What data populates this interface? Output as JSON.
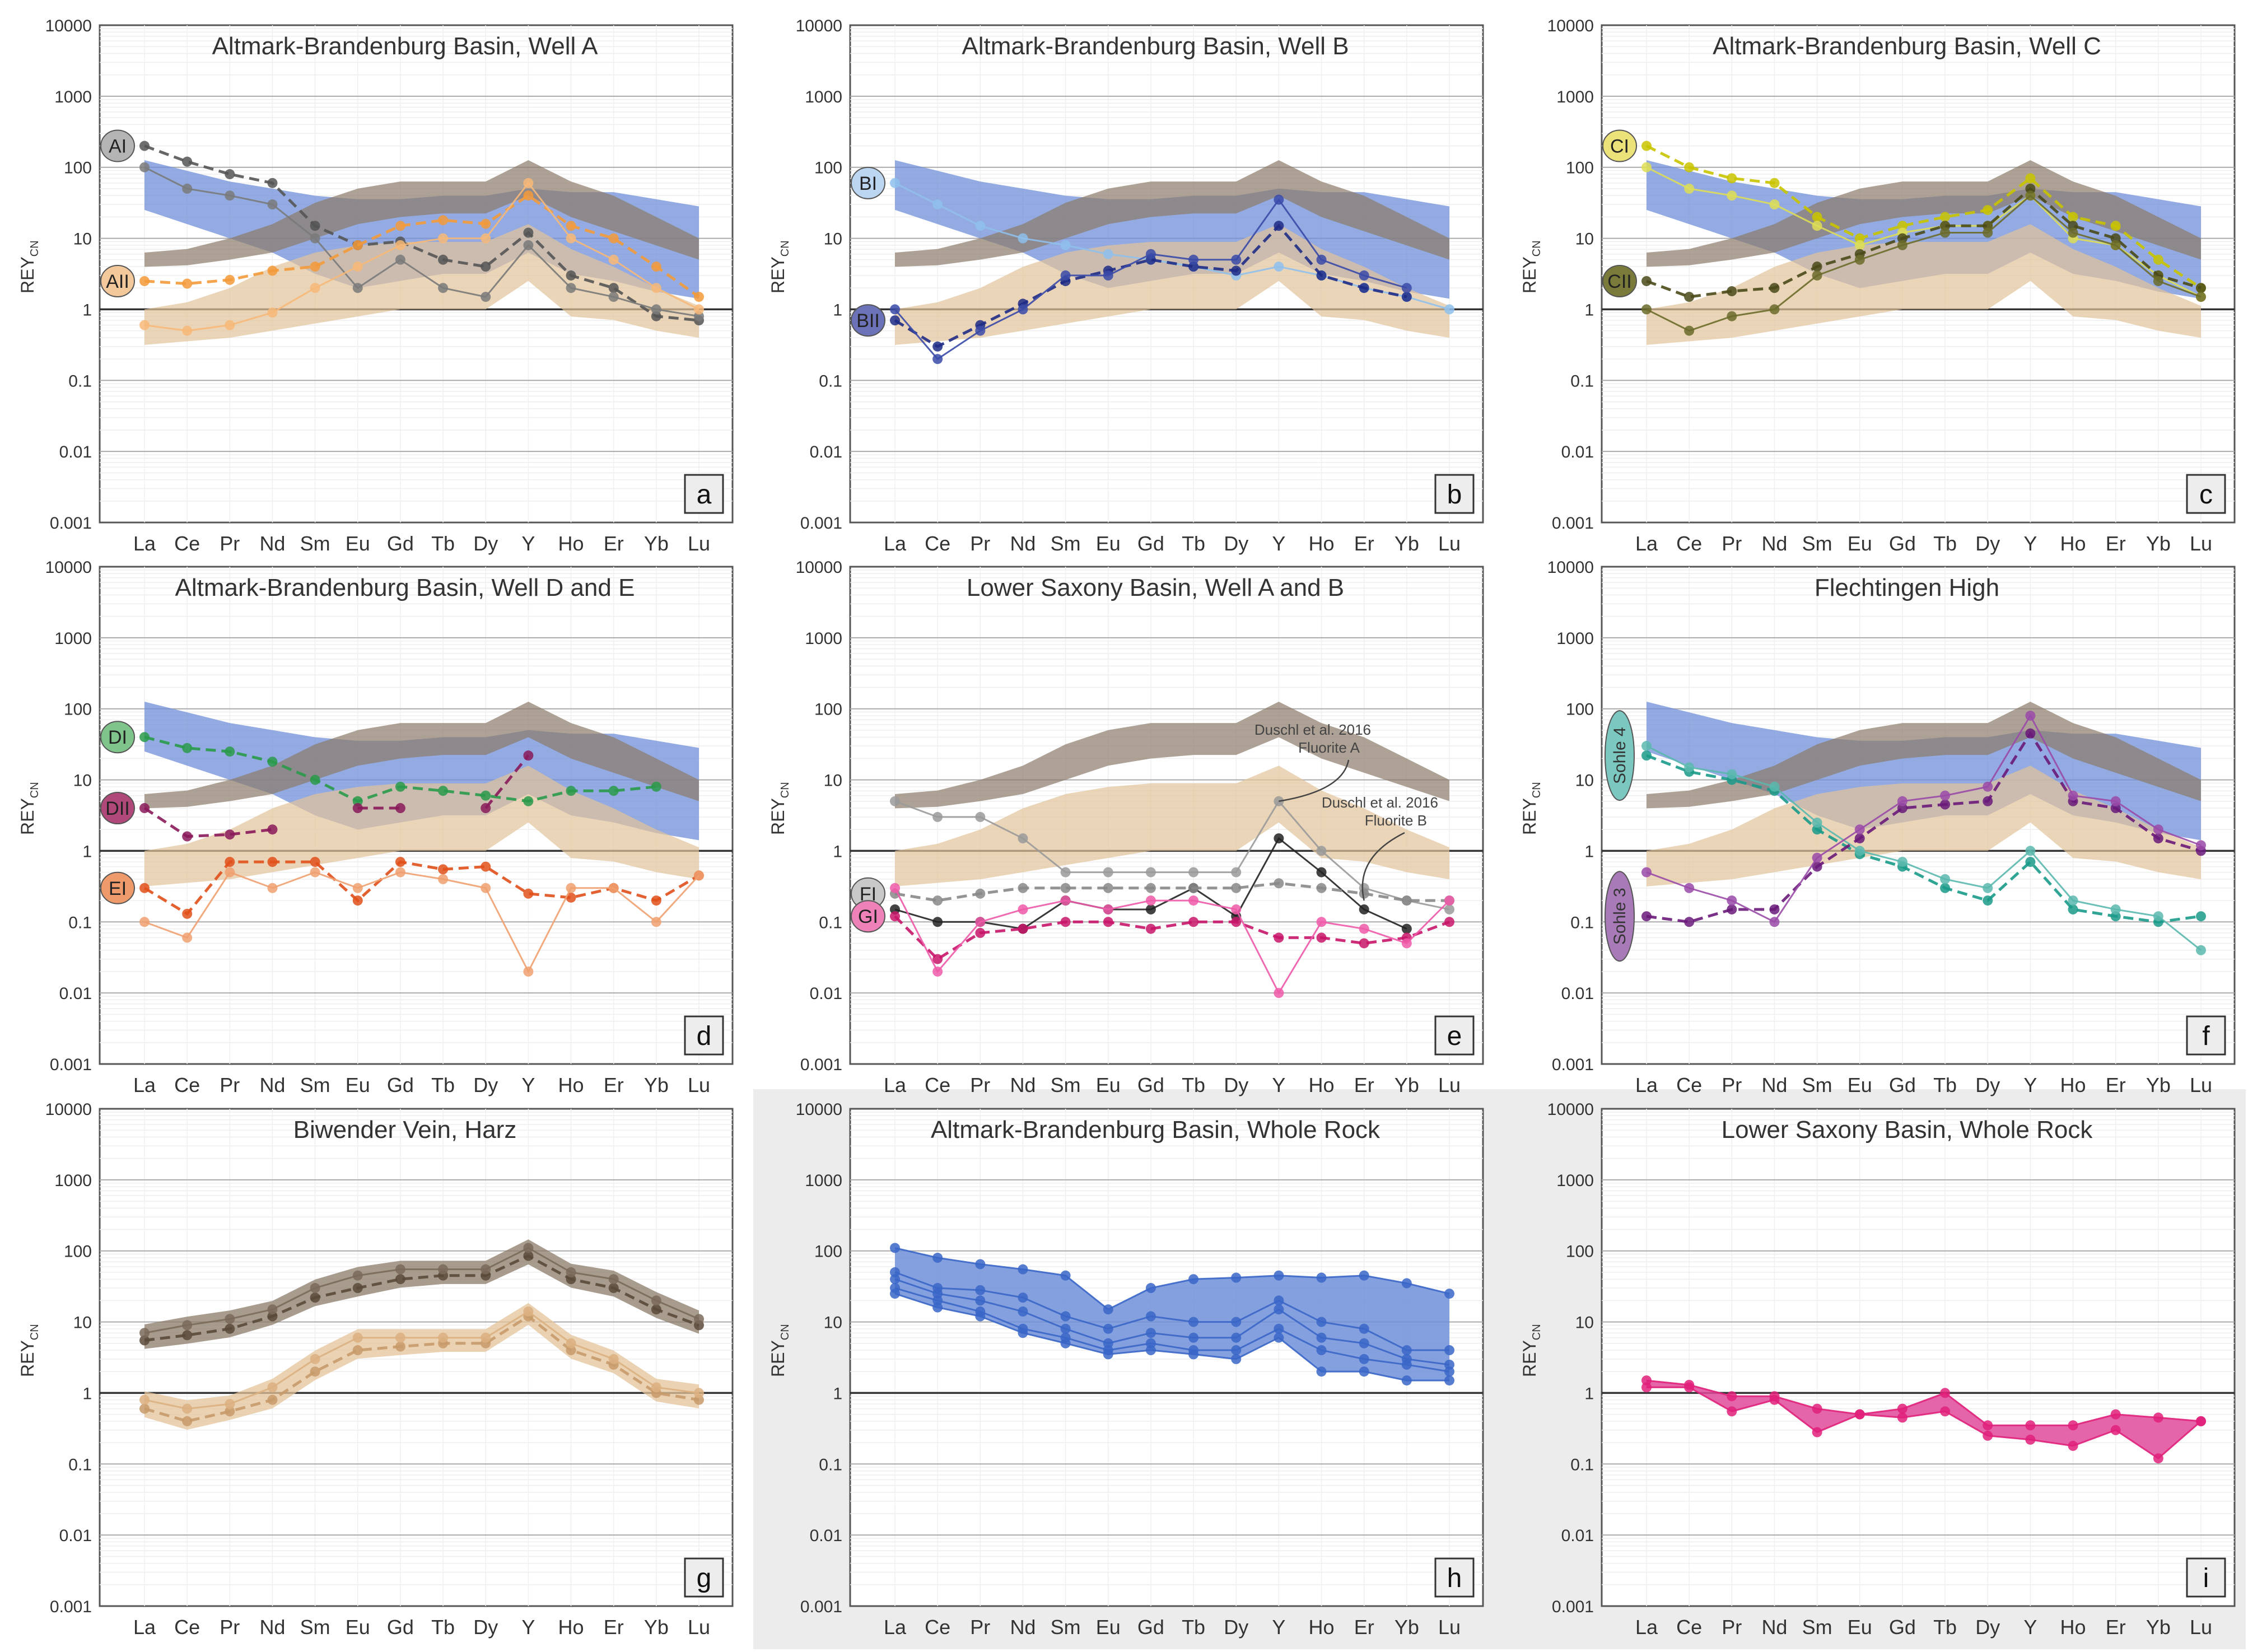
{
  "figure": {
    "elements": [
      "La",
      "Ce",
      "Pr",
      "Nd",
      "Sm",
      "Eu",
      "Gd",
      "Tb",
      "Dy",
      "Y",
      "Ho",
      "Er",
      "Yb",
      "Lu"
    ],
    "ylabel": "REY",
    "ylabel_sub": "CN",
    "yticks": [
      "0.001",
      "0.01",
      "0.1",
      "1",
      "10",
      "100",
      "1000",
      "10000"
    ],
    "colors": {
      "brown_band": "#8b7b6a",
      "tan_band": "#e3c39a",
      "blue_band": "#6f8fd8",
      "pink_band": "#e04a9a",
      "gray_bg": "#ececec"
    }
  },
  "chart_data": [
    {
      "panel": "a",
      "type": "line",
      "title": "Altmark-Brandenburg Basin, Well A",
      "xlabel": "",
      "ylabel": "REYCN",
      "yscale": "log",
      "ylim": [
        0.001,
        10000
      ],
      "categories": [
        "La",
        "Ce",
        "Pr",
        "Nd",
        "Sm",
        "Eu",
        "Gd",
        "Tb",
        "Dy",
        "Y",
        "Ho",
        "Er",
        "Yb",
        "Lu"
      ],
      "groups": [
        {
          "label": "AI",
          "color": "#b4b4b4"
        },
        {
          "label": "AII",
          "color": "#f3c99b"
        }
      ],
      "series": [
        {
          "name": "AI mean",
          "color": "#555555",
          "dashed": true,
          "values": [
            200,
            120,
            80,
            60,
            15,
            8,
            9,
            5,
            4,
            12,
            3,
            2,
            0.8,
            0.7
          ]
        },
        {
          "name": "AI sample",
          "color": "#7a7a7a",
          "dashed": false,
          "values": [
            100,
            50,
            40,
            30,
            10,
            2,
            5,
            2,
            1.5,
            8,
            2,
            1.5,
            1,
            0.8
          ]
        },
        {
          "name": "AII mean",
          "color": "#f39a3a",
          "dashed": true,
          "values": [
            2.5,
            2.3,
            2.6,
            3.5,
            4,
            8,
            15,
            18,
            16,
            40,
            15,
            10,
            4,
            1.5
          ]
        },
        {
          "name": "AII sample",
          "color": "#f7b878",
          "dashed": false,
          "values": [
            0.6,
            0.5,
            0.6,
            0.9,
            2,
            4,
            8,
            10,
            10,
            60,
            10,
            5,
            2,
            1
          ]
        }
      ]
    },
    {
      "panel": "b",
      "type": "line",
      "title": "Altmark-Brandenburg Basin, Well B",
      "xlabel": "",
      "ylabel": "REYCN",
      "yscale": "log",
      "ylim": [
        0.001,
        10000
      ],
      "categories": [
        "La",
        "Ce",
        "Pr",
        "Nd",
        "Sm",
        "Eu",
        "Gd",
        "Tb",
        "Dy",
        "Y",
        "Ho",
        "Er",
        "Yb",
        "Lu"
      ],
      "groups": [
        {
          "label": "BI",
          "color": "#bcd6f2"
        },
        {
          "label": "BII",
          "color": "#6b72b8"
        }
      ],
      "series": [
        {
          "name": "BI sample",
          "color": "#8fc0ec",
          "dashed": false,
          "values": [
            60,
            30,
            15,
            10,
            8,
            6,
            5,
            4,
            3,
            4,
            3,
            2,
            1.5,
            1
          ]
        },
        {
          "name": "BII mean",
          "color": "#1f2c86",
          "dashed": true,
          "values": [
            0.7,
            0.3,
            0.6,
            1.2,
            2.5,
            3.5,
            5,
            4,
            3.5,
            15,
            3,
            2,
            1.5,
            null
          ]
        },
        {
          "name": "BII sample",
          "color": "#3a4aa8",
          "dashed": false,
          "values": [
            1,
            0.2,
            0.5,
            1,
            3,
            3,
            6,
            5,
            5,
            35,
            5,
            3,
            2,
            null
          ]
        }
      ]
    },
    {
      "panel": "c",
      "type": "line",
      "title": "Altmark-Brandenburg Basin, Well C",
      "xlabel": "",
      "ylabel": "REYCN",
      "yscale": "log",
      "ylim": [
        0.001,
        10000
      ],
      "categories": [
        "La",
        "Ce",
        "Pr",
        "Nd",
        "Sm",
        "Eu",
        "Gd",
        "Tb",
        "Dy",
        "Y",
        "Ho",
        "Er",
        "Yb",
        "Lu"
      ],
      "groups": [
        {
          "label": "CI",
          "color": "#ece27a"
        },
        {
          "label": "CII",
          "color": "#7a7a3a"
        }
      ],
      "series": [
        {
          "name": "CI mean",
          "color": "#c9c400",
          "dashed": true,
          "values": [
            200,
            100,
            70,
            60,
            20,
            10,
            15,
            20,
            25,
            70,
            20,
            15,
            5,
            2
          ]
        },
        {
          "name": "CI sample",
          "color": "#dede55",
          "dashed": false,
          "values": [
            100,
            50,
            40,
            30,
            15,
            8,
            12,
            15,
            15,
            40,
            10,
            8,
            3,
            1.5
          ]
        },
        {
          "name": "CII mean",
          "color": "#4a4a1a",
          "dashed": true,
          "values": [
            2.5,
            1.5,
            1.8,
            2,
            4,
            6,
            10,
            15,
            15,
            50,
            15,
            10,
            3,
            2
          ]
        },
        {
          "name": "CII sample",
          "color": "#6b6b2a",
          "dashed": false,
          "values": [
            1,
            0.5,
            0.8,
            1,
            3,
            5,
            8,
            12,
            12,
            40,
            12,
            8,
            2.5,
            1.5
          ]
        }
      ]
    },
    {
      "panel": "d",
      "type": "line",
      "title": "Altmark-Brandenburg Basin, Well D and E",
      "xlabel": "",
      "ylabel": "REYCN",
      "yscale": "log",
      "ylim": [
        0.001,
        10000
      ],
      "categories": [
        "La",
        "Ce",
        "Pr",
        "Nd",
        "Sm",
        "Eu",
        "Gd",
        "Tb",
        "Dy",
        "Y",
        "Ho",
        "Er",
        "Yb",
        "Lu"
      ],
      "groups": [
        {
          "label": "DI",
          "color": "#7fc48a"
        },
        {
          "label": "DII",
          "color": "#b0487a"
        },
        {
          "label": "EI",
          "color": "#ee9a6a"
        }
      ],
      "series": [
        {
          "name": "DI",
          "color": "#2a9a4a",
          "dashed": true,
          "values": [
            40,
            28,
            25,
            18,
            10,
            5,
            8,
            7,
            6,
            5,
            7,
            7,
            8,
            null
          ]
        },
        {
          "name": "DII",
          "color": "#8a1a5a",
          "dashed": true,
          "values": [
            4,
            1.6,
            1.7,
            2,
            null,
            4,
            4,
            null,
            4,
            22,
            null,
            null,
            null,
            null
          ]
        },
        {
          "name": "EI mean",
          "color": "#e0501a",
          "dashed": true,
          "values": [
            0.3,
            0.13,
            0.7,
            0.7,
            0.7,
            0.2,
            0.7,
            0.55,
            0.6,
            0.25,
            0.22,
            0.3,
            0.2,
            0.45
          ]
        },
        {
          "name": "EI sample",
          "color": "#f0a070",
          "dashed": false,
          "values": [
            0.1,
            0.06,
            0.5,
            0.3,
            0.5,
            0.3,
            0.5,
            0.4,
            0.3,
            0.02,
            0.3,
            0.3,
            0.1,
            0.45
          ]
        }
      ]
    },
    {
      "panel": "e",
      "type": "line",
      "title": "Lower Saxony Basin, Well A and B",
      "xlabel": "",
      "ylabel": "REYCN",
      "yscale": "log",
      "ylim": [
        0.001,
        10000
      ],
      "categories": [
        "La",
        "Ce",
        "Pr",
        "Nd",
        "Sm",
        "Eu",
        "Gd",
        "Tb",
        "Dy",
        "Y",
        "Ho",
        "Er",
        "Yb",
        "Lu"
      ],
      "groups": [
        {
          "label": "FI",
          "color": "#c8c8c8"
        },
        {
          "label": "GI",
          "color": "#ee82b8"
        }
      ],
      "annotations": [
        {
          "text": "Duschl et al. 2016",
          "sub": "Fluorite A"
        },
        {
          "text": "Duschl et al. 2016",
          "sub": "Fluorite B"
        }
      ],
      "series": [
        {
          "name": "Duschl et al. 2016 Fluorite A",
          "color": "#9a9a9a",
          "dashed": false,
          "values": [
            5,
            3,
            3,
            1.5,
            0.5,
            0.5,
            0.5,
            0.5,
            0.5,
            5,
            1,
            0.3,
            0.2,
            0.15
          ]
        },
        {
          "name": "Duschl et al. 2016 Fluorite B",
          "color": "#222222",
          "dashed": false,
          "values": [
            0.15,
            0.1,
            0.1,
            0.08,
            0.2,
            0.15,
            0.15,
            0.3,
            0.12,
            1.5,
            0.5,
            0.15,
            0.08,
            null
          ]
        },
        {
          "name": "FI mean",
          "color": "#888888",
          "dashed": true,
          "values": [
            0.25,
            0.2,
            0.25,
            0.3,
            0.3,
            0.3,
            0.3,
            0.3,
            0.3,
            0.35,
            0.3,
            0.25,
            0.2,
            0.2
          ]
        },
        {
          "name": "GI mean",
          "color": "#c8156a",
          "dashed": true,
          "values": [
            0.12,
            0.03,
            0.07,
            0.08,
            0.1,
            0.1,
            0.08,
            0.1,
            0.1,
            0.06,
            0.06,
            0.05,
            0.06,
            0.1
          ]
        },
        {
          "name": "GI sample",
          "color": "#ee5aa8",
          "dashed": false,
          "values": [
            0.3,
            0.02,
            0.1,
            0.15,
            0.2,
            0.15,
            0.2,
            0.2,
            0.15,
            0.01,
            0.1,
            0.08,
            0.05,
            0.2
          ]
        }
      ]
    },
    {
      "panel": "f",
      "type": "line",
      "title": "Flechtingen High",
      "xlabel": "",
      "ylabel": "REYCN",
      "yscale": "log",
      "ylim": [
        0.001,
        10000
      ],
      "categories": [
        "La",
        "Ce",
        "Pr",
        "Nd",
        "Sm",
        "Eu",
        "Gd",
        "Tb",
        "Dy",
        "Y",
        "Ho",
        "Er",
        "Yb",
        "Lu"
      ],
      "groups": [
        {
          "label": "Sohle 4",
          "color": "#7ac8c0"
        },
        {
          "label": "Sohle 3",
          "color": "#a87ab8"
        }
      ],
      "series": [
        {
          "name": "Sohle 4 mean",
          "color": "#1a9a8a",
          "dashed": true,
          "values": [
            22,
            13,
            10,
            7,
            2,
            0.9,
            0.6,
            0.3,
            0.2,
            0.7,
            0.15,
            0.12,
            0.1,
            0.12
          ]
        },
        {
          "name": "Sohle 4 sample",
          "color": "#5ab8ae",
          "dashed": false,
          "values": [
            30,
            15,
            12,
            8,
            2.5,
            1,
            0.7,
            0.4,
            0.3,
            1,
            0.2,
            0.15,
            0.12,
            0.04
          ]
        },
        {
          "name": "Sohle 3 mean",
          "color": "#6a1a7a",
          "dashed": true,
          "values": [
            0.12,
            0.1,
            0.15,
            0.15,
            0.6,
            1.5,
            4,
            4.5,
            5,
            45,
            5,
            4,
            1.5,
            1
          ]
        },
        {
          "name": "Sohle 3 sample",
          "color": "#9a4aa8",
          "dashed": false,
          "values": [
            0.5,
            0.3,
            0.2,
            0.1,
            0.8,
            2,
            5,
            6,
            8,
            80,
            6,
            5,
            2,
            1.2
          ]
        }
      ]
    },
    {
      "panel": "g",
      "type": "line",
      "title": "Biwender Vein, Harz",
      "xlabel": "",
      "ylabel": "REYCN",
      "yscale": "log",
      "ylim": [
        0.001,
        10000
      ],
      "categories": [
        "La",
        "Ce",
        "Pr",
        "Nd",
        "Sm",
        "Eu",
        "Gd",
        "Tb",
        "Dy",
        "Y",
        "Ho",
        "Er",
        "Yb",
        "Lu"
      ],
      "series": [
        {
          "name": "Biwender mean",
          "color": "#5a4a3a",
          "dashed": true,
          "values": [
            5.5,
            6.5,
            8,
            12,
            22,
            30,
            40,
            45,
            45,
            85,
            40,
            30,
            15,
            9
          ]
        },
        {
          "name": "Biwender sample",
          "color": "#7a6a5a",
          "dashed": false,
          "values": [
            7,
            9,
            11,
            15,
            30,
            45,
            55,
            55,
            55,
            110,
            50,
            40,
            20,
            11
          ]
        },
        {
          "name": "Biwender low mean",
          "color": "#c89a6a",
          "dashed": true,
          "values": [
            0.6,
            0.4,
            0.55,
            0.8,
            2,
            4,
            4.5,
            5,
            5,
            12,
            4,
            2.5,
            1,
            0.8
          ]
        },
        {
          "name": "Biwender low sample",
          "color": "#dcb080",
          "dashed": false,
          "values": [
            0.8,
            0.6,
            0.7,
            1.2,
            3,
            6,
            6,
            6,
            6,
            14,
            5,
            3,
            1.2,
            1
          ]
        }
      ]
    },
    {
      "panel": "h",
      "type": "area",
      "title": "Altmark-Brandenburg Basin, Whole Rock",
      "xlabel": "",
      "ylabel": "REYCN",
      "yscale": "log",
      "ylim": [
        0.001,
        10000
      ],
      "categories": [
        "La",
        "Ce",
        "Pr",
        "Nd",
        "Sm",
        "Eu",
        "Gd",
        "Tb",
        "Dy",
        "Y",
        "Ho",
        "Er",
        "Yb",
        "Lu"
      ],
      "series": [
        {
          "name": "WR 1",
          "color": "#3a66c8",
          "dashed": false,
          "values": [
            110,
            80,
            65,
            55,
            45,
            15,
            30,
            40,
            42,
            45,
            42,
            45,
            35,
            25
          ]
        },
        {
          "name": "WR 2",
          "color": "#3a66c8",
          "dashed": false,
          "values": [
            50,
            30,
            28,
            22,
            12,
            8,
            12,
            10,
            10,
            20,
            10,
            8,
            4,
            4
          ]
        },
        {
          "name": "WR 3",
          "color": "#3a66c8",
          "dashed": false,
          "values": [
            30,
            20,
            14,
            8,
            6,
            4,
            5,
            4,
            4,
            8,
            4,
            3,
            2.5,
            2
          ]
        },
        {
          "name": "WR 4",
          "color": "#3a66c8",
          "dashed": false,
          "values": [
            40,
            25,
            20,
            14,
            8,
            5,
            7,
            6,
            6,
            15,
            6,
            5,
            3,
            2.5
          ]
        },
        {
          "name": "WR 5",
          "color": "#3a66c8",
          "dashed": false,
          "values": [
            25,
            16,
            12,
            7,
            5,
            3.5,
            4,
            3.5,
            3,
            6,
            2,
            2,
            1.5,
            1.5
          ]
        }
      ]
    },
    {
      "panel": "i",
      "type": "area",
      "title": "Lower Saxony Basin, Whole Rock",
      "xlabel": "",
      "ylabel": "REYCN",
      "yscale": "log",
      "ylim": [
        0.001,
        10000
      ],
      "categories": [
        "La",
        "Ce",
        "Pr",
        "Nd",
        "Sm",
        "Eu",
        "Gd",
        "Tb",
        "Dy",
        "Y",
        "Ho",
        "Er",
        "Yb",
        "Lu"
      ],
      "series": [
        {
          "name": "WR upper",
          "color": "#e0207a",
          "dashed": false,
          "values": [
            1.5,
            1.3,
            0.9,
            0.9,
            0.6,
            0.5,
            0.6,
            1,
            0.35,
            0.35,
            0.35,
            0.5,
            0.45,
            0.4
          ]
        },
        {
          "name": "WR lower",
          "color": "#e0207a",
          "dashed": false,
          "values": [
            1.2,
            1.2,
            0.55,
            0.8,
            0.28,
            0.5,
            0.45,
            0.55,
            0.25,
            0.22,
            0.18,
            0.3,
            0.12,
            0.4
          ]
        }
      ]
    }
  ]
}
